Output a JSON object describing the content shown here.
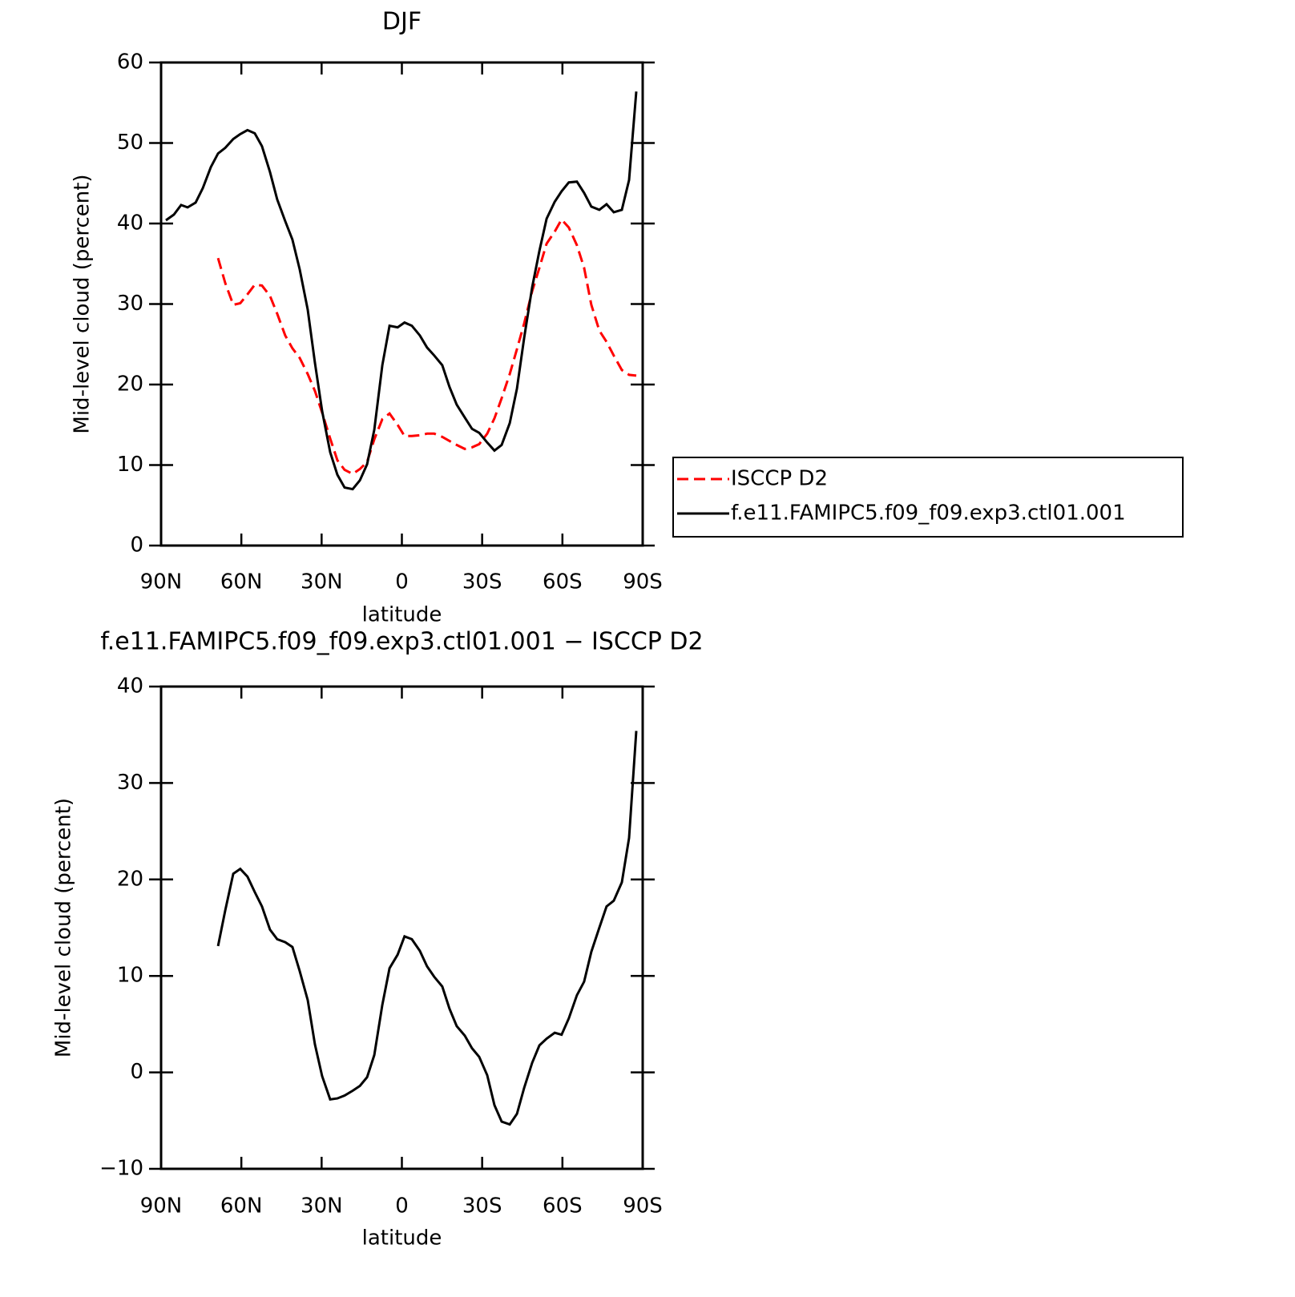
{
  "chart_data": [
    {
      "type": "line",
      "title": "DJF",
      "xlabel": "latitude",
      "ylabel": "Mid-level cloud (percent)",
      "x": [
        88.2,
        85.2,
        82.5,
        80.1,
        77.1,
        74.4,
        71.4,
        68.7,
        66.0,
        63.0,
        60.4,
        57.7,
        55.0,
        52.3,
        49.3,
        46.6,
        43.6,
        40.9,
        38.2,
        35.2,
        32.5,
        29.8,
        26.8,
        24.1,
        21.4,
        18.4,
        15.7,
        13.0,
        10.3,
        7.3,
        4.6,
        1.6,
        -1.0,
        -3.7,
        -6.7,
        -9.4,
        -12.1,
        -15.1,
        -17.8,
        -20.5,
        -23.5,
        -26.2,
        -28.9,
        -31.9,
        -34.6,
        -37.3,
        -40.3,
        -43.0,
        -45.7,
        -48.7,
        -51.4,
        -54.1,
        -57.1,
        -59.7,
        -62.4,
        -65.4,
        -68.1,
        -70.8,
        -73.8,
        -76.5,
        -79.2,
        -82.2,
        -84.9,
        -87.6
      ],
      "xlim": [
        90,
        -90
      ],
      "xticks": [
        {
          "value": 90,
          "label": "90N"
        },
        {
          "value": 60,
          "label": "60N"
        },
        {
          "value": 30,
          "label": "30N"
        },
        0,
        {
          "value": -30,
          "label": "30S"
        },
        {
          "value": -60,
          "label": "60S"
        },
        {
          "value": -90,
          "label": "90S"
        }
      ],
      "ylim": [
        0,
        60
      ],
      "yticks": [
        0,
        10,
        20,
        30,
        40,
        50,
        60
      ],
      "legend": "right",
      "series": [
        {
          "name": "ISCCP D2",
          "color": "#ff0000",
          "style": "dashed",
          "values": [
            null,
            null,
            null,
            null,
            null,
            null,
            null,
            35.7,
            32.6,
            29.9,
            30.1,
            31.2,
            32.4,
            32.3,
            31.0,
            28.8,
            26.1,
            24.5,
            23.3,
            21.3,
            19.2,
            16.5,
            13.3,
            10.6,
            9.4,
            8.9,
            9.5,
            10.4,
            13.2,
            15.7,
            16.4,
            15.0,
            13.6,
            13.6,
            13.7,
            13.9,
            13.9,
            13.5,
            13.0,
            12.5,
            12.0,
            12.2,
            12.6,
            13.9,
            15.8,
            18.3,
            21.3,
            24.4,
            27.6,
            31.6,
            34.5,
            37.5,
            39.0,
            40.5,
            39.5,
            37.3,
            34.5,
            29.9,
            26.7,
            25.3,
            23.6,
            21.8,
            21.2,
            21.1
          ]
        },
        {
          "name": "f.e11.FAMIPC5.f09_f09.exp3.ctl01.001",
          "color": "#000000",
          "style": "solid",
          "values": [
            40.4,
            41.1,
            42.3,
            42.0,
            42.6,
            44.4,
            47.0,
            48.7,
            49.4,
            50.5,
            51.1,
            51.6,
            51.2,
            49.6,
            46.4,
            43.0,
            40.3,
            38.0,
            34.3,
            29.3,
            22.7,
            16.7,
            11.6,
            8.8,
            7.2,
            7.0,
            8.1,
            10.1,
            14.4,
            22.4,
            27.3,
            27.1,
            27.7,
            27.3,
            26.1,
            24.6,
            23.6,
            22.4,
            19.7,
            17.5,
            15.9,
            14.5,
            14.0,
            12.8,
            11.8,
            12.5,
            15.2,
            19.5,
            25.8,
            32.1,
            36.6,
            40.6,
            42.7,
            44.0,
            45.1,
            45.2,
            43.8,
            42.1,
            41.7,
            42.4,
            41.4,
            41.7,
            45.4,
            56.4
          ]
        }
      ]
    },
    {
      "type": "line",
      "title": "f.e11.FAMIPC5.f09_f09.exp3.ctl01.001 − ISCCP D2",
      "xlabel": "latitude",
      "ylabel": "Mid-level cloud (percent)",
      "x": [
        88.2,
        85.2,
        82.5,
        80.1,
        77.1,
        74.4,
        71.4,
        68.7,
        66.0,
        63.0,
        60.4,
        57.7,
        55.0,
        52.3,
        49.3,
        46.6,
        43.6,
        40.9,
        38.2,
        35.2,
        32.5,
        29.8,
        26.8,
        24.1,
        21.4,
        18.4,
        15.7,
        13.0,
        10.3,
        7.3,
        4.6,
        1.6,
        -1.0,
        -3.7,
        -6.7,
        -9.4,
        -12.1,
        -15.1,
        -17.8,
        -20.5,
        -23.5,
        -26.2,
        -28.9,
        -31.9,
        -34.6,
        -37.3,
        -40.3,
        -43.0,
        -45.7,
        -48.7,
        -51.4,
        -54.1,
        -57.1,
        -59.7,
        -62.4,
        -65.4,
        -68.1,
        -70.8,
        -73.8,
        -76.5,
        -79.2,
        -82.2,
        -84.9,
        -87.6
      ],
      "xlim": [
        90,
        -90
      ],
      "xticks": [
        {
          "value": 90,
          "label": "90N"
        },
        {
          "value": 60,
          "label": "60N"
        },
        {
          "value": 30,
          "label": "30N"
        },
        0,
        {
          "value": -30,
          "label": "30S"
        },
        {
          "value": -60,
          "label": "60S"
        },
        {
          "value": -90,
          "label": "90S"
        }
      ],
      "ylim": [
        -10,
        40
      ],
      "yticks": [
        {
          "value": -10,
          "label": "−10"
        },
        0,
        10,
        20,
        30,
        40
      ],
      "color": "#000000",
      "values": [
        null,
        null,
        null,
        null,
        null,
        null,
        null,
        13.1,
        16.8,
        20.6,
        21.1,
        20.3,
        18.7,
        17.2,
        14.8,
        13.8,
        13.5,
        13.0,
        10.5,
        7.5,
        2.9,
        -0.4,
        -2.8,
        -2.7,
        -2.4,
        -1.9,
        -1.4,
        -0.5,
        1.8,
        7.0,
        10.8,
        12.2,
        14.1,
        13.8,
        12.6,
        11.0,
        9.9,
        8.9,
        6.6,
        4.8,
        3.8,
        2.5,
        1.6,
        -0.3,
        -3.4,
        -5.1,
        -5.4,
        -4.3,
        -1.6,
        1.0,
        2.8,
        3.5,
        4.1,
        3.9,
        5.6,
        8.0,
        9.4,
        12.5,
        15.0,
        17.2,
        17.8,
        19.7,
        24.3,
        35.4
      ]
    }
  ]
}
